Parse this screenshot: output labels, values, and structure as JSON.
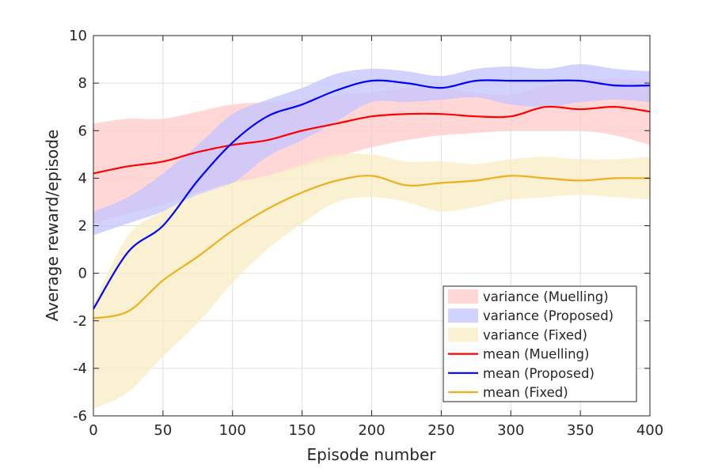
{
  "chart_data": {
    "type": "line",
    "xlabel": "Episode number",
    "ylabel": "Average reward/episode",
    "xlim": [
      0,
      400
    ],
    "ylim": [
      -6,
      10
    ],
    "xticks": [
      0,
      50,
      100,
      150,
      200,
      250,
      300,
      350,
      400
    ],
    "yticks": [
      -6,
      -4,
      -2,
      0,
      2,
      4,
      6,
      8,
      10
    ],
    "grid": true,
    "legend_position": "bottom-right",
    "x": [
      0,
      25,
      50,
      75,
      100,
      125,
      150,
      175,
      200,
      225,
      250,
      275,
      300,
      325,
      350,
      375,
      400
    ],
    "bands": [
      {
        "name": "variance (Muelling)",
        "color": "#ffcccc",
        "lower": [
          2.1,
          2.5,
          2.9,
          3.4,
          3.8,
          4.1,
          4.5,
          4.9,
          5.3,
          5.6,
          5.8,
          5.9,
          6.0,
          6.0,
          6.0,
          5.8,
          5.4
        ],
        "upper": [
          6.3,
          6.5,
          6.5,
          6.8,
          7.1,
          7.2,
          7.3,
          7.5,
          7.6,
          7.8,
          7.8,
          7.6,
          7.5,
          7.9,
          8.1,
          8.2,
          8.1
        ]
      },
      {
        "name": "variance (Proposed)",
        "color": "#c5c5ff",
        "lower": [
          1.6,
          2.1,
          2.6,
          3.3,
          3.8,
          4.9,
          5.6,
          6.4,
          7.2,
          7.2,
          7.3,
          7.4,
          7.1,
          7.0,
          7.2,
          7.3,
          7.2
        ],
        "upper": [
          2.6,
          3.2,
          4.2,
          5.4,
          6.7,
          7.3,
          7.8,
          8.4,
          8.6,
          8.5,
          8.3,
          8.6,
          8.7,
          8.6,
          8.8,
          8.6,
          8.5
        ]
      },
      {
        "name": "variance (Fixed)",
        "color": "#f8ecc5",
        "lower": [
          -5.7,
          -5.0,
          -3.5,
          -2.1,
          -0.4,
          1.0,
          2.1,
          3.0,
          3.2,
          3.0,
          2.6,
          2.8,
          3.1,
          3.2,
          3.3,
          3.2,
          3.1
        ],
        "upper": [
          -1.3,
          1.6,
          2.6,
          3.3,
          3.8,
          4.1,
          4.6,
          5.0,
          5.0,
          4.7,
          4.7,
          4.6,
          4.8,
          4.9,
          4.8,
          4.8,
          4.9
        ]
      }
    ],
    "series": [
      {
        "name": "mean (Muelling)",
        "color": "#ff0000",
        "values": [
          4.2,
          4.5,
          4.7,
          5.1,
          5.4,
          5.6,
          6.0,
          6.3,
          6.6,
          6.7,
          6.7,
          6.6,
          6.6,
          7.0,
          6.9,
          7.0,
          6.8
        ]
      },
      {
        "name": "mean (Proposed)",
        "color": "#0000ff",
        "values": [
          -1.5,
          0.9,
          2.0,
          3.9,
          5.5,
          6.6,
          7.1,
          7.7,
          8.1,
          8.0,
          7.8,
          8.1,
          8.1,
          8.1,
          8.1,
          7.9,
          7.9
        ]
      },
      {
        "name": "mean (Fixed)",
        "color": "#edb120",
        "values": [
          -1.9,
          -1.6,
          -0.3,
          0.7,
          1.8,
          2.7,
          3.4,
          3.9,
          4.1,
          3.7,
          3.8,
          3.9,
          4.1,
          4.0,
          3.9,
          4.0,
          4.0
        ]
      }
    ]
  }
}
